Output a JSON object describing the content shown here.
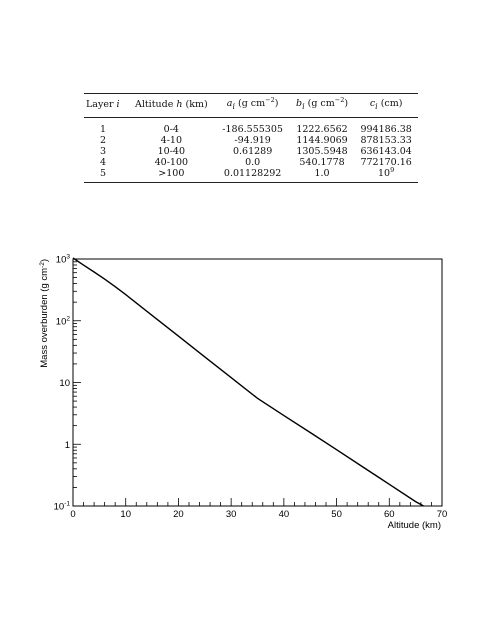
{
  "table": {
    "headers": [
      {
        "main": "Layer ",
        "var": "i",
        "unit": ""
      },
      {
        "main": "Altitude ",
        "var": "h",
        "unit": " (km)"
      },
      {
        "main": "",
        "var": "a",
        "sub": "i",
        "unit": " (g cm",
        "exp": "−2",
        "close": ")"
      },
      {
        "main": "",
        "var": "b",
        "sub": "i",
        "unit": " (g cm",
        "exp": "−2",
        "close": ")"
      },
      {
        "main": "",
        "var": "c",
        "sub": "i",
        "unit": " (cm)"
      }
    ],
    "rows": [
      {
        "layer": "1",
        "altitude": "0-4",
        "a": "-186.555305",
        "b": "1222.6562",
        "c": "994186.38"
      },
      {
        "layer": "2",
        "altitude": "4-10",
        "a": "-94.919",
        "b": "1144.9069",
        "c": "878153.33"
      },
      {
        "layer": "3",
        "altitude": "10-40",
        "a": "0.61289",
        "b": "1305.5948",
        "c": "636143.04"
      },
      {
        "layer": "4",
        "altitude": "40-100",
        "a": "0.0",
        "b": "540.1778",
        "c": "772170.16"
      },
      {
        "layer": "5",
        "altitude": ">100",
        "a": "0.01128292",
        "b": "1.0",
        "c_base": "10",
        "c_exp": "9"
      }
    ]
  },
  "chart_data": {
    "type": "line",
    "xlabel": "Altitude (km)",
    "ylabel": "Mass overburden (g cm",
    "ylabel_exp": "-2",
    "ylabel_close": ")",
    "xlim": [
      0,
      70
    ],
    "ylim": [
      0.1,
      1000
    ],
    "yscale": "log",
    "grid": false,
    "x_ticks": [
      "0",
      "10",
      "20",
      "30",
      "40",
      "50",
      "60",
      "70"
    ],
    "y_ticks": [
      {
        "base": "10",
        "exp": "3",
        "value": 1000
      },
      {
        "base": "10",
        "exp": "2",
        "value": 100
      },
      {
        "base": "10",
        "exp": "",
        "value": 10
      },
      {
        "base": "1",
        "exp": "",
        "value": 1
      },
      {
        "base": "10",
        "exp": "-1",
        "value": 0.1
      }
    ],
    "series": [
      {
        "x": [
          0,
          2,
          4,
          6,
          8,
          10,
          15,
          20,
          25,
          30,
          35,
          40,
          45,
          50,
          55,
          60,
          65,
          66.5
        ],
        "y": [
          1036.1,
          795.9,
          616.5,
          472.1,
          355.7,
          264.7,
          122.2,
          56.4,
          26.0,
          12.02,
          5.55,
          2.91,
          1.55,
          0.815,
          0.428,
          0.225,
          0.118,
          0.1
        ]
      }
    ]
  }
}
